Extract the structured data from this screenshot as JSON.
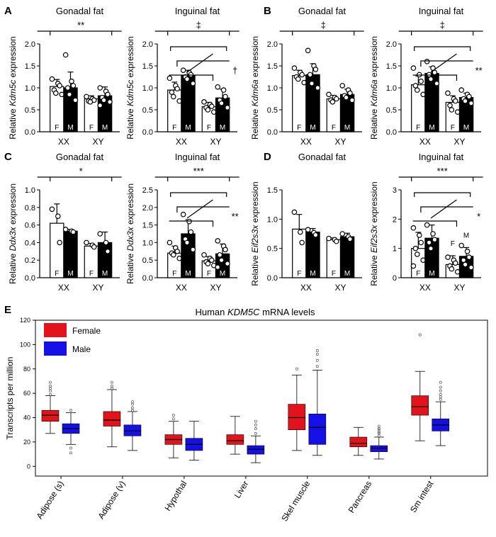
{
  "chart_data": [
    {
      "id": "A1",
      "panel_label": "A",
      "type": "bar",
      "title": "Gonadal fat",
      "ylabel_prefix": "Relative ",
      "ylabel_gene": "Kdm5c",
      "ylabel_suffix": " expression",
      "ylim": [
        0,
        2.0
      ],
      "yticks": [
        "0.0",
        "0.5",
        "1.0",
        "1.5",
        "2.0"
      ],
      "categories": [
        "XX",
        "XY"
      ],
      "bar_labels": [
        "F",
        "M"
      ],
      "series": [
        {
          "name": "F",
          "values": [
            1.03,
            0.75
          ],
          "errors": [
            0.16,
            0.07
          ]
        },
        {
          "name": "M",
          "values": [
            1.0,
            0.82
          ],
          "errors": [
            0.36,
            0.2
          ]
        }
      ],
      "points": {
        "XX_F": [
          1.2,
          1.1,
          1.05,
          0.95,
          0.88,
          0.85
        ],
        "XX_M": [
          1.75,
          1.15,
          1.05,
          1.0,
          0.85,
          0.72
        ],
        "XY_F": [
          0.8,
          0.75,
          0.72,
          0.7,
          0.68
        ],
        "XY_M": [
          1.0,
          0.92,
          0.85,
          0.78,
          0.72,
          0.68,
          0.6
        ]
      },
      "significance": {
        "levels": [
          {
            "label": "**",
            "span": "XX-XY"
          }
        ]
      }
    },
    {
      "id": "A2",
      "type": "bar",
      "title": "Inguinal fat",
      "ylabel_prefix": "Relative ",
      "ylabel_gene": "Kdm5c",
      "ylabel_suffix": " expression",
      "ylim": [
        0,
        2.0
      ],
      "yticks": [
        "0.0",
        "0.5",
        "1.0",
        "1.5",
        "2.0"
      ],
      "categories": [
        "XX",
        "XY"
      ],
      "bar_labels": [
        "F",
        "M"
      ],
      "series": [
        {
          "name": "F",
          "values": [
            0.95,
            0.57
          ],
          "errors": [
            0.18,
            0.1
          ]
        },
        {
          "name": "M",
          "values": [
            1.28,
            0.77
          ],
          "errors": [
            0.12,
            0.2
          ]
        }
      ],
      "points": {
        "XX_F": [
          1.22,
          1.05,
          0.98,
          0.9,
          0.8,
          0.7
        ],
        "XX_M": [
          1.4,
          1.35,
          1.3,
          1.25,
          1.2,
          1.1
        ],
        "XY_F": [
          0.68,
          0.62,
          0.58,
          0.55,
          0.5,
          0.45
        ],
        "XY_M": [
          1.02,
          0.95,
          0.8,
          0.72,
          0.65,
          0.55
        ]
      },
      "significance": {
        "levels": [
          {
            "label": "‡",
            "span": "XX-XY"
          },
          {
            "label": "†",
            "span": "cross"
          }
        ]
      }
    },
    {
      "id": "B1",
      "panel_label": "B",
      "type": "bar",
      "title": "Gonadal fat",
      "ylabel_prefix": "Relative ",
      "ylabel_gene": "Kdm6a",
      "ylabel_suffix": " expression",
      "ylim": [
        0,
        2.0
      ],
      "yticks": [
        "0.0",
        "0.5",
        "1.0",
        "1.5",
        "2.0"
      ],
      "categories": [
        "XX",
        "XY"
      ],
      "bar_labels": [
        "F",
        "M"
      ],
      "series": [
        {
          "name": "F",
          "values": [
            1.28,
            0.75
          ],
          "errors": [
            0.12,
            0.08
          ]
        },
        {
          "name": "M",
          "values": [
            1.3,
            0.85
          ],
          "errors": [
            0.25,
            0.12
          ]
        }
      ],
      "points": {
        "XX_F": [
          1.45,
          1.35,
          1.3,
          1.25,
          1.2,
          1.12
        ],
        "XX_M": [
          1.85,
          1.5,
          1.42,
          1.3,
          1.1,
          1.0
        ],
        "XY_F": [
          0.85,
          0.78,
          0.75,
          0.72,
          0.68
        ],
        "XY_M": [
          1.05,
          0.95,
          0.88,
          0.82,
          0.78,
          0.72
        ]
      },
      "significance": {
        "levels": [
          {
            "label": "‡",
            "span": "XX-XY"
          }
        ]
      }
    },
    {
      "id": "B2",
      "type": "bar",
      "title": "Inguinal fat",
      "ylabel_prefix": "Relative ",
      "ylabel_gene": "Kdm6a",
      "ylabel_suffix": " expression",
      "ylim": [
        0,
        2.0
      ],
      "yticks": [
        "0.0",
        "0.5",
        "1.0",
        "1.5",
        "2.0"
      ],
      "categories": [
        "XX",
        "XY"
      ],
      "bar_labels": [
        "F",
        "M"
      ],
      "series": [
        {
          "name": "F",
          "values": [
            1.07,
            0.67
          ],
          "errors": [
            0.2,
            0.15
          ]
        },
        {
          "name": "M",
          "values": [
            1.33,
            0.78
          ],
          "errors": [
            0.15,
            0.1
          ]
        }
      ],
      "points": {
        "XX_F": [
          1.45,
          1.3,
          1.15,
          1.05,
          0.95,
          0.85
        ],
        "XX_M": [
          1.6,
          1.45,
          1.35,
          1.3,
          1.2,
          1.1
        ],
        "XY_F": [
          0.88,
          0.75,
          0.7,
          0.6,
          0.5,
          0.45
        ],
        "XY_M": [
          0.95,
          0.85,
          0.8,
          0.75,
          0.7,
          0.65
        ]
      },
      "significance": {
        "levels": [
          {
            "label": "‡",
            "span": "XX-XY"
          },
          {
            "label": "**",
            "span": "cross"
          }
        ]
      }
    },
    {
      "id": "C1",
      "panel_label": "C",
      "type": "bar",
      "title": "Gonadal fat",
      "ylabel_prefix": "Relative ",
      "ylabel_gene": "Ddx3x",
      "ylabel_suffix": " expression",
      "ylim": [
        0,
        1.0
      ],
      "yticks": [
        "0.0",
        "0.2",
        "0.4",
        "0.6",
        "0.8",
        "1.0"
      ],
      "categories": [
        "XX",
        "XY"
      ],
      "bar_labels": [
        "F",
        "M"
      ],
      "series": [
        {
          "name": "F",
          "values": [
            0.62,
            0.36
          ],
          "errors": [
            0.22,
            0.03
          ]
        },
        {
          "name": "M",
          "values": [
            0.53,
            0.4
          ],
          "errors": [
            0.02,
            0.12
          ]
        }
      ],
      "points": {
        "XX_F": [
          0.78,
          0.7,
          0.4
        ],
        "XX_M": [
          0.55,
          0.53,
          0.52
        ],
        "XY_F": [
          0.4,
          0.37,
          0.35
        ],
        "XY_M": [
          0.5,
          0.4,
          0.3
        ]
      },
      "significance": {
        "levels": [
          {
            "label": "*",
            "span": "XX-XY"
          }
        ]
      }
    },
    {
      "id": "C2",
      "type": "bar",
      "title": "Inguinal fat",
      "ylabel_prefix": "Relative ",
      "ylabel_gene": "Ddx3x",
      "ylabel_suffix": " expression",
      "ylim": [
        0,
        2.5
      ],
      "yticks": [
        "0.0",
        "0.5",
        "1.0",
        "1.5",
        "2.0",
        "2.5"
      ],
      "categories": [
        "XX",
        "XY"
      ],
      "bar_labels": [
        "F",
        "M"
      ],
      "series": [
        {
          "name": "F",
          "values": [
            0.7,
            0.48
          ],
          "errors": [
            0.2,
            0.12
          ]
        },
        {
          "name": "M",
          "values": [
            1.25,
            0.68
          ],
          "errors": [
            0.4,
            0.28
          ]
        }
      ],
      "points": {
        "XX_F": [
          1.0,
          0.85,
          0.75,
          0.7,
          0.65,
          0.55
        ],
        "XX_M": [
          1.8,
          1.6,
          1.3,
          1.1,
          1.0,
          0.8
        ],
        "XY_F": [
          0.65,
          0.55,
          0.5,
          0.45,
          0.4,
          0.35
        ],
        "XY_M": [
          1.05,
          0.9,
          0.8,
          0.65,
          0.5,
          0.4,
          0.3
        ]
      },
      "significance": {
        "levels": [
          {
            "label": "***",
            "span": "XX-XY"
          },
          {
            "label": "**",
            "span": "cross"
          }
        ]
      }
    },
    {
      "id": "D1",
      "panel_label": "D",
      "type": "bar",
      "title": "Gonadal fat",
      "ylabel_prefix": "Relative ",
      "ylabel_gene": "Eif2s3x",
      "ylabel_suffix": " expression",
      "ylim": [
        0,
        1.5
      ],
      "yticks": [
        "0.0",
        "0.5",
        "1.0",
        "1.5"
      ],
      "categories": [
        "XX",
        "XY"
      ],
      "bar_labels": [
        "F",
        "M"
      ],
      "series": [
        {
          "name": "F",
          "values": [
            0.83,
            0.65
          ],
          "errors": [
            0.25,
            0.03
          ]
        },
        {
          "name": "M",
          "values": [
            0.78,
            0.7
          ],
          "errors": [
            0.06,
            0.06
          ]
        }
      ],
      "points": {
        "XX_F": [
          1.12,
          0.78,
          0.6
        ],
        "XX_M": [
          0.82,
          0.77,
          0.73
        ],
        "XY_F": [
          0.67,
          0.65,
          0.62
        ],
        "XY_M": [
          0.75,
          0.7,
          0.66
        ]
      },
      "significance": {
        "levels": []
      }
    },
    {
      "id": "D2",
      "type": "bar",
      "title": "Inguinal fat",
      "ylabel_prefix": "Relative ",
      "ylabel_gene": "Eif2s3x",
      "ylabel_suffix": " expression",
      "ylim": [
        0,
        3
      ],
      "yticks": [
        "0",
        "1",
        "2",
        "3"
      ],
      "categories": [
        "XX",
        "XY"
      ],
      "bar_labels": [
        "F",
        "M"
      ],
      "bar_labels_above_xy": true,
      "series": [
        {
          "name": "F",
          "values": [
            1.0,
            0.45
          ],
          "errors": [
            0.55,
            0.3
          ]
        },
        {
          "name": "M",
          "values": [
            1.35,
            0.73
          ],
          "errors": [
            0.45,
            0.3
          ]
        }
      ],
      "points": {
        "XX_F": [
          1.7,
          1.45,
          1.2,
          1.0,
          0.8,
          0.6,
          0.4
        ],
        "XX_M": [
          1.8,
          1.5,
          1.3,
          1.2,
          1.0
        ],
        "XY_F": [
          0.7,
          0.6,
          0.5,
          0.4,
          0.3,
          0.2
        ],
        "XY_M": [
          1.1,
          0.9,
          0.7,
          0.6,
          0.45,
          0.35
        ]
      },
      "significance": {
        "levels": [
          {
            "label": "***",
            "span": "XX-XY"
          },
          {
            "label": "*",
            "span": "cross"
          }
        ]
      }
    }
  ],
  "boxplot": {
    "panel_label": "E",
    "type": "box",
    "title_prefix": "Human ",
    "title_gene": "KDM5C",
    "title_suffix": " mRNA levels",
    "ylabel": "Transcripts per million",
    "ylim": [
      -8,
      120
    ],
    "yticks": [
      0,
      20,
      40,
      60,
      80,
      100,
      120
    ],
    "legend": [
      {
        "name": "Female",
        "color": "#e2131b"
      },
      {
        "name": "Male",
        "color": "#1410e6"
      }
    ],
    "categories": [
      "Adipose (s)",
      "Adipose (v)",
      "Hypothal",
      "Liver",
      "Skel muscle",
      "Pancreas",
      "Sm intest"
    ],
    "female": [
      {
        "wlo": 27,
        "q1": 37,
        "med": 42,
        "q3": 46,
        "whi": 58,
        "outliers": [
          59,
          62,
          64,
          66,
          69
        ]
      },
      {
        "wlo": 16,
        "q1": 33,
        "med": 38,
        "q3": 45,
        "whi": 63,
        "outliers": [
          64,
          66,
          69
        ]
      },
      {
        "wlo": 7,
        "q1": 18,
        "med": 22,
        "q3": 26,
        "whi": 37,
        "outliers": [
          39,
          42
        ]
      },
      {
        "wlo": 10,
        "q1": 18,
        "med": 21,
        "q3": 26,
        "whi": 41,
        "outliers": []
      },
      {
        "wlo": 13,
        "q1": 30,
        "med": 40,
        "q3": 51,
        "whi": 75,
        "outliers": [
          80
        ]
      },
      {
        "wlo": 9,
        "q1": 16,
        "med": 19,
        "q3": 24,
        "whi": 32,
        "outliers": []
      },
      {
        "wlo": 21,
        "q1": 42,
        "med": 49,
        "q3": 58,
        "whi": 78,
        "outliers": [
          108
        ]
      }
    ],
    "male": [
      {
        "wlo": 18,
        "q1": 27,
        "med": 31,
        "q3": 35,
        "whi": 44,
        "outliers": [
          46,
          15,
          11
        ]
      },
      {
        "wlo": 13,
        "q1": 25,
        "med": 29,
        "q3": 34,
        "whi": 45,
        "outliers": [
          46,
          48,
          51,
          53
        ]
      },
      {
        "wlo": 5,
        "q1": 13,
        "med": 18,
        "q3": 23,
        "whi": 37,
        "outliers": []
      },
      {
        "wlo": 3,
        "q1": 10,
        "med": 14,
        "q3": 17,
        "whi": 25,
        "outliers": [
          27,
          31,
          34,
          37
        ]
      },
      {
        "wlo": 9,
        "q1": 18,
        "med": 32,
        "q3": 43,
        "whi": 79,
        "outliers": [
          82,
          87,
          92,
          95
        ]
      },
      {
        "wlo": 6,
        "q1": 12,
        "med": 15,
        "q3": 17,
        "whi": 24,
        "outliers": [
          25,
          27,
          28,
          30,
          31,
          33
        ]
      },
      {
        "wlo": 17,
        "q1": 29,
        "med": 34,
        "q3": 39,
        "whi": 53,
        "outliers": [
          55,
          57,
          59,
          62,
          65,
          69
        ]
      }
    ]
  }
}
